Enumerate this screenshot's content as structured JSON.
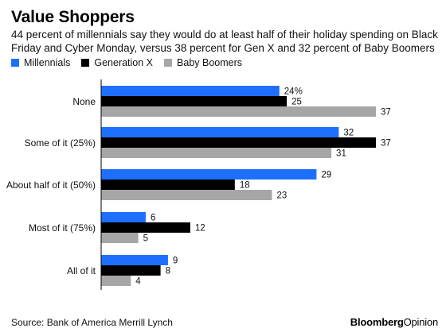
{
  "title": "Value Shoppers",
  "subtitle": "44 percent of millennials say they would do at least half of their holiday spending on Black Friday and Cyber Monday, versus 38 percent for Gen X and 32 percent of Baby Boomers",
  "source": "Source: Bank of America Merrill Lynch",
  "brand": {
    "main": "Bloomberg",
    "sub": "Opinion"
  },
  "colors": {
    "millennials": "#1f6fff",
    "genx": "#000000",
    "boomers": "#a6a6a6"
  },
  "chart_data": {
    "type": "bar",
    "orientation": "horizontal",
    "categories": [
      "None",
      "Some of it (25%)",
      "About half of it (50%)",
      "Most of it (75%)",
      "All of it"
    ],
    "series": [
      {
        "name": "Millennials",
        "values": [
          24,
          32,
          29,
          6,
          9
        ],
        "labels": [
          "24%",
          "32",
          "29",
          "6",
          "9"
        ]
      },
      {
        "name": "Generation X",
        "values": [
          25,
          37,
          18,
          12,
          8
        ],
        "labels": [
          "25",
          "37",
          "18",
          "12",
          "8"
        ]
      },
      {
        "name": "Baby Boomers",
        "values": [
          37,
          31,
          23,
          5,
          4
        ],
        "labels": [
          "37",
          "31",
          "23",
          "5",
          "4"
        ]
      }
    ],
    "xlim": [
      0,
      37
    ],
    "grid": false,
    "legend_position": "top-left"
  }
}
